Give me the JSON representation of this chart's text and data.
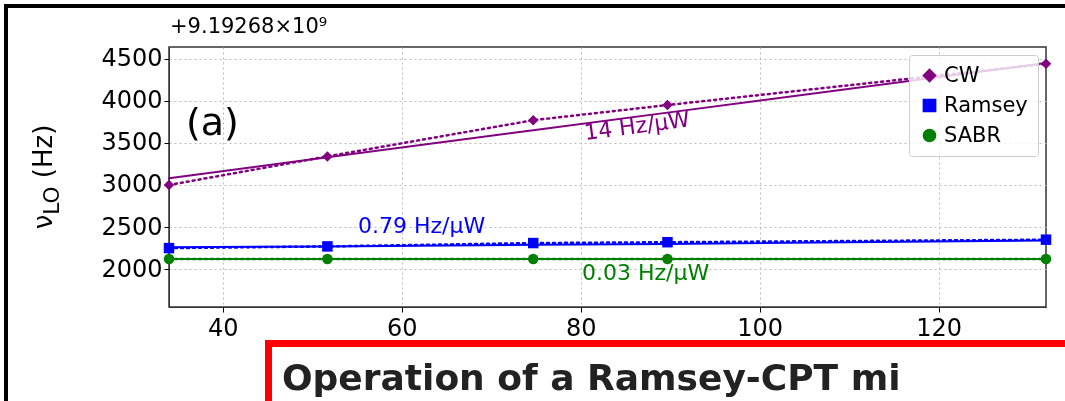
{
  "chart_data": {
    "type": "line",
    "ylabel": "ν$_{LO}$ (Hz)",
    "x": [
      34,
      51.7,
      74.7,
      89.7,
      132
    ],
    "series": [
      {
        "name": "CW",
        "color": "#800080",
        "marker": "diamond",
        "line_style": "dotted",
        "values": [
          3000,
          3340,
          3770,
          3950,
          4440
        ]
      },
      {
        "name": "Ramsey",
        "color": "#0000ff",
        "marker": "square",
        "line_style": "dotted",
        "values": [
          2250,
          2270,
          2310,
          2320,
          2350
        ]
      },
      {
        "name": "SABR",
        "color": "#008000",
        "marker": "circle",
        "line_style": "dotted",
        "values": [
          2120,
          2120,
          2120,
          2120,
          2120
        ]
      },
      {
        "type": "line",
        "color": "#800080",
        "line_style": "solid",
        "values": [
          3080,
          3330,
          3650,
          3860,
          4450
        ]
      },
      {
        "type": "line",
        "color": "#0000ff",
        "line_style": "solid",
        "values": [
          2260,
          2270,
          2290,
          2300,
          2340
        ]
      },
      {
        "type": "line",
        "color": "#008000",
        "line_style": "solid",
        "values": [
          2120,
          2120,
          2120,
          2120,
          2120
        ]
      }
    ],
    "xlim": [
      34,
      132
    ],
    "xticks": [
      40,
      60,
      80,
      100,
      120
    ],
    "ylim": [
      1550,
      4640
    ],
    "yticks": [
      2000,
      2500,
      3000,
      3500,
      4000,
      4500
    ],
    "grid": true,
    "legend": "top right",
    "annotations": [
      "+9.19268×10⁹",
      "(a)",
      "Operation of a Ramsey-CPT mi",
      "14 Hz/μW",
      "0.79 Hz/μW",
      "0.03 Hz/μW"
    ]
  }
}
